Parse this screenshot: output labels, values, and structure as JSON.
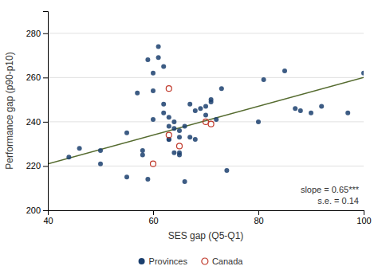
{
  "chart_data": {
    "type": "scatter",
    "xlabel": "SES gap (Q5-Q1)",
    "ylabel": "Performance gap (p90-p10)",
    "annotation": "slope = 0.65***\ns.e. = 0.14",
    "series": [
      {
        "name": "Provinces",
        "color": "#1b3f6e",
        "marker": "circle",
        "x": [
          44,
          46,
          50,
          50,
          55,
          55,
          57,
          58,
          58,
          59,
          59,
          60,
          60,
          60,
          61,
          61,
          62,
          62,
          62,
          63,
          63,
          63,
          63,
          64,
          64,
          64,
          65,
          65,
          65,
          65,
          66,
          66,
          67,
          67,
          68,
          68,
          69,
          70,
          70,
          71,
          71,
          72,
          73,
          74,
          80,
          81,
          85,
          87,
          88,
          90,
          92,
          97,
          100
        ],
        "values": [
          224,
          228,
          227,
          221,
          235,
          215,
          253,
          227,
          225,
          214,
          268,
          262,
          254,
          241,
          269,
          274,
          265,
          248,
          244,
          242,
          238,
          232,
          232,
          240,
          237,
          226,
          236,
          233,
          226,
          225,
          238,
          213,
          248,
          233,
          245,
          232,
          246,
          247,
          243,
          250,
          249,
          241,
          255,
          218,
          240,
          259,
          263,
          246,
          245,
          244,
          247,
          244,
          262
        ]
      },
      {
        "name": "Canada",
        "color": "#c0392b",
        "marker": "open-circle",
        "x": [
          60,
          63,
          63,
          65,
          70,
          71
        ],
        "values": [
          221,
          255,
          234,
          229,
          240,
          239
        ]
      },
      {
        "type": "line",
        "color": "#556b2f",
        "line_style": "solid",
        "x": [
          40,
          100
        ],
        "values": [
          221.0,
          260.0
        ]
      }
    ],
    "xlim": [
      40,
      100
    ],
    "ylim": [
      200,
      290
    ],
    "xticks": [
      40,
      60,
      80,
      100
    ],
    "yticks": [
      200,
      220,
      240,
      260,
      280
    ],
    "grid": "y",
    "legend": "bottom"
  }
}
